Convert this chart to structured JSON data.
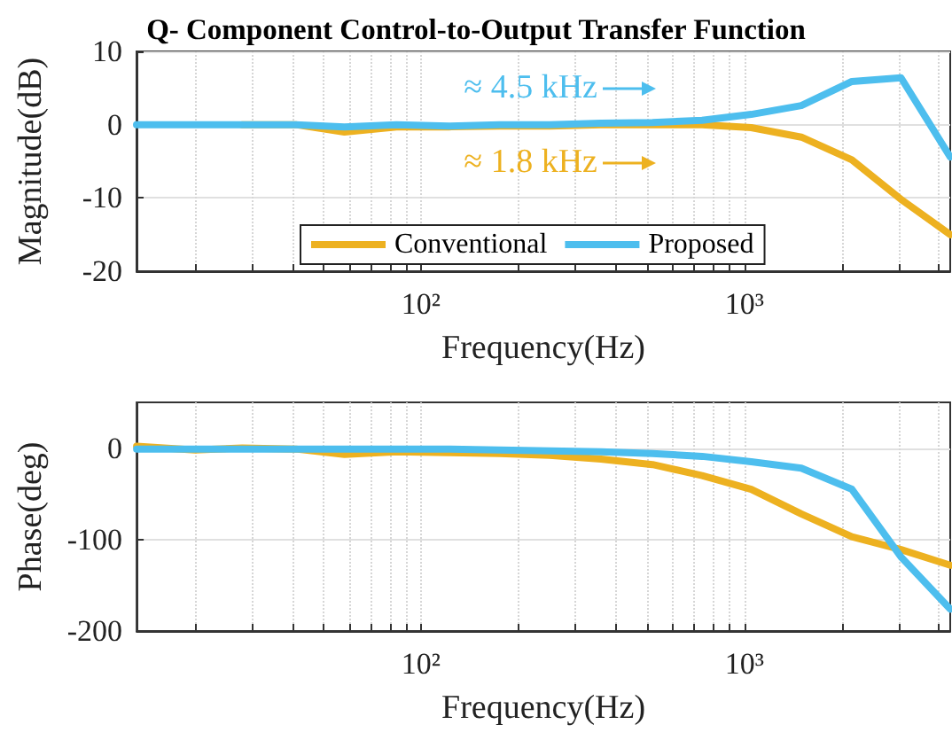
{
  "chart_data": [
    {
      "type": "line",
      "title": "Q- Component Control-to-Output Transfer Function",
      "xlabel": "Frequency(Hz)",
      "ylabel": "Magnitude(dB)",
      "x": [
        13.2,
        20,
        28,
        41,
        58,
        84,
        122,
        175,
        250,
        360,
        520,
        740,
        1050,
        1500,
        2150,
        3050,
        4330
      ],
      "series": [
        {
          "name": "Conventional",
          "color": "#edb120",
          "values": [
            null,
            null,
            0,
            0,
            -1,
            -0.3,
            -0.3,
            -0.2,
            -0.2,
            0,
            0,
            0,
            -0.4,
            -1.7,
            -4.8,
            -10.2,
            -15
          ]
        },
        {
          "name": "Proposed",
          "color": "#4dbeee",
          "values": [
            0,
            0,
            0,
            0,
            -0.3,
            0,
            -0.2,
            0,
            0,
            0.2,
            0.3,
            0.6,
            1.4,
            2.6,
            5.9,
            6.4,
            -4.4
          ]
        }
      ],
      "xlim": [
        13.2,
        4330
      ],
      "ylim": [
        -20,
        10
      ],
      "yticks": [
        -20,
        -10,
        0,
        10
      ],
      "xticks": [
        {
          "value": 20,
          "label": null
        },
        {
          "value": 30,
          "label": null
        },
        {
          "value": 40,
          "label": null
        },
        {
          "value": 50,
          "label": null
        },
        {
          "value": 60,
          "label": null
        },
        {
          "value": 70,
          "label": null
        },
        {
          "value": 80,
          "label": null
        },
        {
          "value": 90,
          "label": null
        },
        {
          "value": 100,
          "label": "10²"
        },
        {
          "value": 200,
          "label": null
        },
        {
          "value": 300,
          "label": null
        },
        {
          "value": 400,
          "label": null
        },
        {
          "value": 500,
          "label": null
        },
        {
          "value": 600,
          "label": null
        },
        {
          "value": 700,
          "label": null
        },
        {
          "value": 800,
          "label": null
        },
        {
          "value": 900,
          "label": null
        },
        {
          "value": 1000,
          "label": "10³"
        },
        {
          "value": 2000,
          "label": null
        },
        {
          "value": 3000,
          "label": null
        },
        {
          "value": 4000,
          "label": null
        }
      ],
      "annotations": [
        "≈ 4.5 kHz",
        "≈ 1.8 kHz"
      ],
      "log": "x",
      "grid": true,
      "legend": "bottom",
      "line_style": "solid",
      "marker": "none"
    },
    {
      "type": "line",
      "xlabel": "Frequency(Hz)",
      "ylabel": "Phase(deg)",
      "x": [
        13.2,
        20,
        28,
        41,
        58,
        84,
        122,
        175,
        250,
        360,
        520,
        740,
        1050,
        1500,
        2150,
        3050,
        4330
      ],
      "series": [
        {
          "color": "#edb120",
          "values": [
            2,
            -2,
            0,
            -1,
            -7,
            -4,
            -5,
            -6,
            -8,
            -12,
            -18,
            -30,
            -45,
            -72,
            -97,
            -111,
            -128
          ]
        },
        {
          "color": "#4dbeee",
          "values": [
            -1,
            -1,
            -1,
            -1,
            -1,
            -1,
            -1,
            -2,
            -3,
            -4,
            -6,
            -9,
            -15,
            -22,
            -45,
            -119,
            -176
          ]
        }
      ],
      "xlim": [
        13.2,
        4330
      ],
      "ylim": [
        -200,
        50
      ],
      "yticks": [
        -200,
        -100,
        0
      ],
      "xticks": [
        {
          "value": 20,
          "label": null
        },
        {
          "value": 30,
          "label": null
        },
        {
          "value": 40,
          "label": null
        },
        {
          "value": 50,
          "label": null
        },
        {
          "value": 60,
          "label": null
        },
        {
          "value": 70,
          "label": null
        },
        {
          "value": 80,
          "label": null
        },
        {
          "value": 90,
          "label": null
        },
        {
          "value": 100,
          "label": "10²"
        },
        {
          "value": 200,
          "label": null
        },
        {
          "value": 300,
          "label": null
        },
        {
          "value": 400,
          "label": null
        },
        {
          "value": 500,
          "label": null
        },
        {
          "value": 600,
          "label": null
        },
        {
          "value": 700,
          "label": null
        },
        {
          "value": 800,
          "label": null
        },
        {
          "value": 900,
          "label": null
        },
        {
          "value": 1000,
          "label": "10³"
        },
        {
          "value": 2000,
          "label": null
        },
        {
          "value": 3000,
          "label": null
        },
        {
          "value": 4000,
          "label": null
        }
      ],
      "log": "x",
      "grid": true,
      "legend": false,
      "line_style": "solid",
      "marker": "none"
    }
  ]
}
